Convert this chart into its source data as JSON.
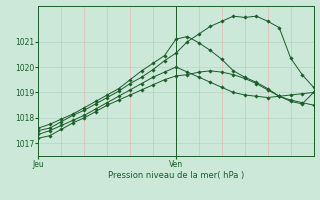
{
  "bg_color": "#cce8d8",
  "grid_color_h": "#b8d4c4",
  "grid_color_v": "#e8b8b8",
  "line_color": "#1a5c2a",
  "marker_color": "#1a5c2a",
  "xlabel": "Pression niveau de la mer( hPa )",
  "xlabel_color": "#1a5c2a",
  "ylabel_color": "#1a5c2a",
  "yticks": [
    1017,
    1018,
    1019,
    1020,
    1021
  ],
  "ylim": [
    1016.5,
    1022.4
  ],
  "xlim": [
    0,
    48
  ],
  "jeu_x": 0,
  "ven_x": 24,
  "vline_x": 24,
  "n_vgrid": 13,
  "series": [
    [
      0,
      1017.35,
      2,
      1017.5,
      4,
      1017.7,
      6,
      1017.9,
      8,
      1018.1,
      10,
      1018.35,
      12,
      1018.6,
      14,
      1018.85,
      16,
      1019.1,
      18,
      1019.35,
      20,
      1019.6,
      22,
      1019.8,
      24,
      1020.0,
      26,
      1019.8,
      28,
      1019.6,
      30,
      1019.4,
      32,
      1019.2,
      34,
      1019.0,
      36,
      1018.9,
      38,
      1018.85,
      40,
      1018.8,
      42,
      1018.85,
      44,
      1018.9,
      46,
      1018.95,
      48,
      1019.0
    ],
    [
      0,
      1017.6,
      2,
      1017.75,
      4,
      1017.95,
      6,
      1018.15,
      8,
      1018.4,
      10,
      1018.65,
      12,
      1018.9,
      14,
      1019.15,
      16,
      1019.5,
      18,
      1019.85,
      20,
      1020.15,
      22,
      1020.45,
      24,
      1021.1,
      26,
      1021.2,
      28,
      1020.95,
      30,
      1020.65,
      32,
      1020.3,
      34,
      1019.85,
      36,
      1019.6,
      38,
      1019.4,
      40,
      1019.15,
      42,
      1018.85,
      44,
      1018.7,
      46,
      1018.6,
      48,
      1018.5
    ],
    [
      0,
      1017.5,
      2,
      1017.6,
      4,
      1017.85,
      6,
      1018.1,
      8,
      1018.3,
      10,
      1018.55,
      12,
      1018.8,
      14,
      1019.05,
      16,
      1019.35,
      18,
      1019.6,
      20,
      1019.9,
      22,
      1020.25,
      24,
      1020.55,
      26,
      1021.0,
      28,
      1021.3,
      30,
      1021.6,
      32,
      1021.8,
      34,
      1022.0,
      36,
      1021.95,
      38,
      1022.0,
      40,
      1021.8,
      42,
      1021.55,
      44,
      1020.35,
      46,
      1019.7,
      48,
      1019.2
    ],
    [
      0,
      1017.2,
      2,
      1017.3,
      4,
      1017.55,
      6,
      1017.8,
      8,
      1018.0,
      10,
      1018.25,
      12,
      1018.5,
      14,
      1018.7,
      16,
      1018.9,
      18,
      1019.1,
      20,
      1019.3,
      22,
      1019.5,
      24,
      1019.65,
      26,
      1019.7,
      28,
      1019.8,
      30,
      1019.85,
      32,
      1019.8,
      34,
      1019.7,
      36,
      1019.55,
      38,
      1019.35,
      40,
      1019.1,
      42,
      1018.85,
      44,
      1018.65,
      46,
      1018.55,
      48,
      1019.0
    ]
  ]
}
